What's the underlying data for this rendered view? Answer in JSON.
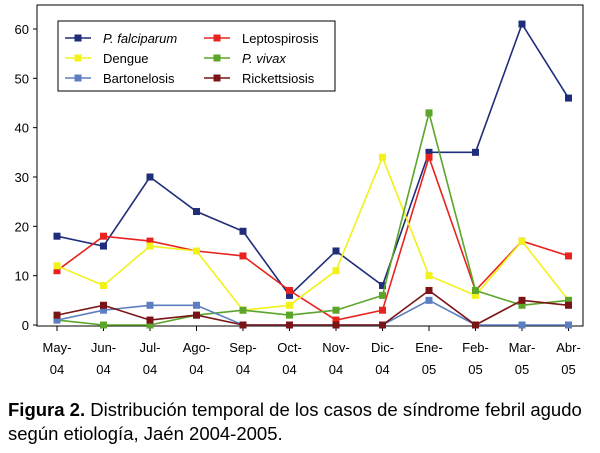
{
  "chart_data": {
    "type": "line",
    "categories": [
      "May-04",
      "Jun-04",
      "Jul-04",
      "Ago-04",
      "Sep-04",
      "Oct-04",
      "Nov-04",
      "Dic-04",
      "Ene-05",
      "Feb-05",
      "Mar-05",
      "Abr-05"
    ],
    "ylim": [
      0,
      65
    ],
    "yticks": [
      0,
      10,
      20,
      30,
      40,
      50,
      60
    ],
    "grid": false,
    "legend_position": "top-left",
    "series": [
      {
        "name": "P. falciparum",
        "italic": true,
        "color": "#1f2d7a",
        "values": [
          18,
          16,
          30,
          23,
          19,
          6,
          15,
          8,
          35,
          35,
          61,
          46
        ]
      },
      {
        "name": "Leptospirosis",
        "italic": false,
        "color": "#e8231f",
        "values": [
          11,
          18,
          17,
          15,
          14,
          7,
          1,
          3,
          34,
          7,
          17,
          14
        ]
      },
      {
        "name": "Dengue",
        "italic": false,
        "color": "#f2f21a",
        "values": [
          12,
          8,
          16,
          15,
          3,
          4,
          11,
          34,
          10,
          6,
          17,
          5
        ]
      },
      {
        "name": "P. vivax",
        "italic": true,
        "color": "#5aa52a",
        "values": [
          1,
          0,
          0,
          2,
          3,
          2,
          3,
          6,
          43,
          7,
          4,
          5
        ]
      },
      {
        "name": "Bartonelosis",
        "italic": false,
        "color": "#5b7fc0",
        "values": [
          1,
          3,
          4,
          4,
          0,
          0,
          0,
          0,
          5,
          0,
          0,
          0
        ]
      },
      {
        "name": "Rickettsiosis",
        "italic": false,
        "color": "#7a1416",
        "values": [
          2,
          4,
          1,
          2,
          0,
          0,
          0,
          0,
          7,
          0,
          5,
          4
        ]
      }
    ]
  },
  "caption": {
    "label": "Figura 2.",
    "text": " Distribución temporal de los casos de síndrome febril agudo según etiología, Jaén 2004-2005."
  }
}
